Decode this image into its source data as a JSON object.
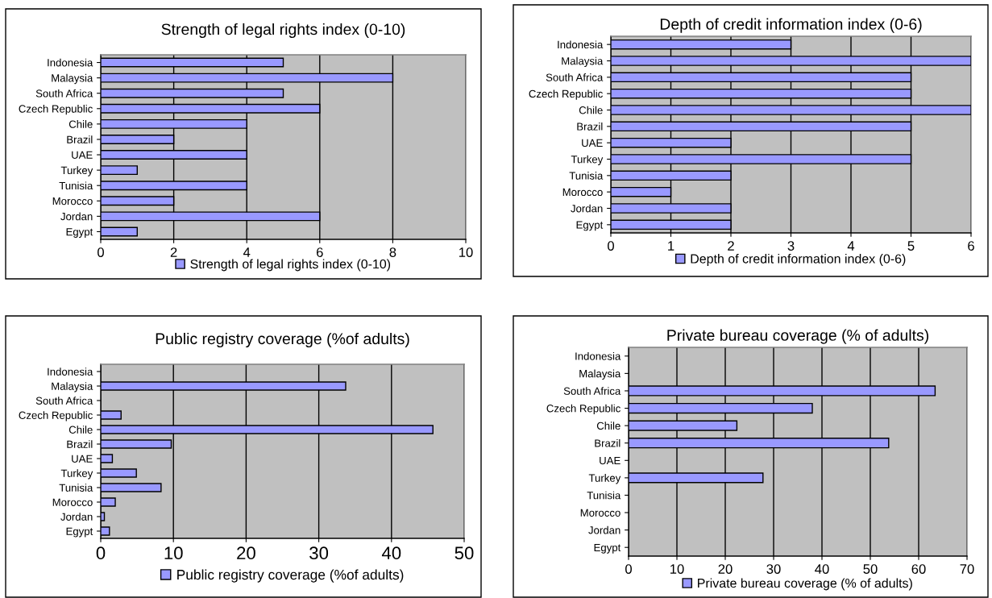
{
  "chart_data": [
    {
      "type": "bar",
      "orientation": "horizontal",
      "title": "Strength of legal rights index (0-10)",
      "categories": [
        "Indonesia",
        "Malaysia",
        "South Africa",
        "Czech Republic",
        "Chile",
        "Brazil",
        "UAE",
        "Turkey",
        "Tunisia",
        "Morocco",
        "Jordan",
        "Egypt"
      ],
      "series": [
        {
          "name": "Strength of legal rights index (0-10)",
          "color": "#9999ff",
          "values": [
            5,
            8,
            5,
            6,
            4,
            2,
            4,
            1,
            4,
            2,
            6,
            1
          ]
        }
      ],
      "xlim": [
        0,
        10
      ],
      "xticks": [
        0,
        2,
        4,
        6,
        8,
        10
      ],
      "grid": "x",
      "legend": "bottom"
    },
    {
      "type": "bar",
      "orientation": "horizontal",
      "title": "Depth of credit information index (0-6)",
      "categories": [
        "Indonesia",
        "Malaysia",
        "South Africa",
        "Czech Republic",
        "Chile",
        "Brazil",
        "UAE",
        "Turkey",
        "Tunisia",
        "Morocco",
        "Jordan",
        "Egypt"
      ],
      "series": [
        {
          "name": "Depth of credit information index (0-6)",
          "color": "#9999ff",
          "values": [
            3,
            6,
            5,
            5,
            6,
            5,
            2,
            5,
            2,
            1,
            2,
            2
          ]
        }
      ],
      "xlim": [
        0,
        6
      ],
      "xticks": [
        0,
        1,
        2,
        3,
        4,
        5,
        6
      ],
      "grid": "x",
      "legend": "bottom"
    },
    {
      "type": "bar",
      "orientation": "horizontal",
      "title": "Public registry coverage (%of adults)",
      "categories": [
        "Indonesia",
        "Malaysia",
        "South Africa",
        "Czech Republic",
        "Chile",
        "Brazil",
        "UAE",
        "Turkey",
        "Tunisia",
        "Morocco",
        "Jordan",
        "Egypt"
      ],
      "series": [
        {
          "name": "Public registry coverage (%of adults)",
          "color": "#9999ff",
          "values": [
            null,
            33.7,
            null,
            2.8,
            45.7,
            9.7,
            1.6,
            4.9,
            8.3,
            2.0,
            0.5,
            1.2
          ]
        }
      ],
      "xlim": [
        0,
        50
      ],
      "xticks": [
        0,
        10,
        20,
        30,
        40,
        50
      ],
      "grid": "x",
      "legend": "bottom"
    },
    {
      "type": "bar",
      "orientation": "horizontal",
      "title": "Private bureau coverage (% of adults)",
      "categories": [
        "Indonesia",
        "Malaysia",
        "South Africa",
        "Czech Republic",
        "Chile",
        "Brazil",
        "UAE",
        "Turkey",
        "Tunisia",
        "Morocco",
        "Jordan",
        "Egypt"
      ],
      "series": [
        {
          "name": "Private bureau coverage (% of adults)",
          "color": "#9999ff",
          "values": [
            null,
            null,
            63.4,
            38.0,
            22.4,
            53.8,
            null,
            27.8,
            null,
            null,
            null,
            null
          ]
        }
      ],
      "xlim": [
        0,
        70
      ],
      "xticks": [
        0,
        10,
        20,
        30,
        40,
        50,
        60,
        70
      ],
      "grid": "x",
      "legend": "bottom"
    }
  ]
}
